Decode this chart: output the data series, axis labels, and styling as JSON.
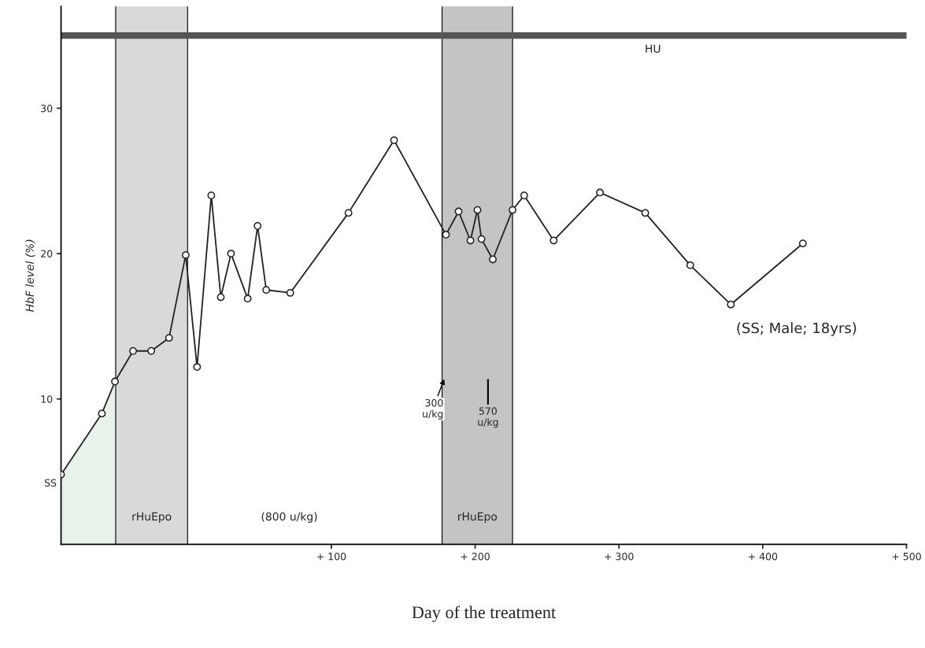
{
  "chart_data": {
    "type": "line",
    "xlabel": "Day of the treatment",
    "ylabel": "HbF level (%)",
    "x": [
      -88,
      -59.6,
      -50.5,
      -37.9,
      -25.3,
      -12.9,
      -1.3,
      6.6,
      16.5,
      23.1,
      30.2,
      41.8,
      48.7,
      54.7,
      71.4,
      111.9,
      143.6,
      179.7,
      188.5,
      196.7,
      201.6,
      204.4,
      212.3,
      226.0,
      234.1,
      254.6,
      286.8,
      318.3,
      349.6,
      377.8,
      427.9
    ],
    "series": [
      {
        "type": "area",
        "marker": "none",
        "color": "#e6f2ea",
        "x": [
          -88,
          -59.6,
          -50.5
        ],
        "values": [
          4.8,
          9.0,
          11.2
        ]
      },
      {
        "color": "#222222",
        "values": [
          4.8,
          9.0,
          11.2,
          13.3,
          13.3,
          14.2,
          19.9,
          12.2,
          24.0,
          17.0,
          20.0,
          16.9,
          21.9,
          17.5,
          17.3,
          22.8,
          27.8,
          21.3,
          22.9,
          20.9,
          23.0,
          21.0,
          19.6,
          23.0,
          24.0,
          20.9,
          24.2,
          22.8,
          19.2,
          16.5,
          20.7
        ]
      }
    ],
    "marker": "circle",
    "line_style": "solid",
    "grid": false,
    "legend": false,
    "xlim": [
      -88,
      500
    ],
    "ylim": [
      0,
      37
    ],
    "xticks": [
      {
        "value": 100,
        "label": "+ 100"
      },
      {
        "value": 200,
        "label": "+ 200"
      },
      {
        "value": 300,
        "label": "+ 300"
      },
      {
        "value": 400,
        "label": "+ 400"
      },
      {
        "value": 500,
        "label": "+ 500"
      }
    ],
    "yticks": [
      10,
      20,
      30
    ],
    "bands": [
      {
        "axis": "x",
        "from": -50,
        "to": 0,
        "label": "rHuEpo",
        "color": "#d9d9d9"
      },
      {
        "axis": "x",
        "from": 177,
        "to": 226,
        "label": "rHuEpo",
        "color": "#c4c4c4"
      }
    ],
    "ref_lines": [
      {
        "axis": "y",
        "value": 35,
        "label": "HU",
        "color": "#555555"
      }
    ],
    "annotations": [
      {
        "text": "SS",
        "x": -88,
        "y": 4.8
      },
      {
        "text": "300\nu/kg",
        "x": 179,
        "y": 11.5
      },
      "570\nu/kg",
      "(800 u/kg)",
      "(SS; Male; 18yrs)"
    ]
  }
}
